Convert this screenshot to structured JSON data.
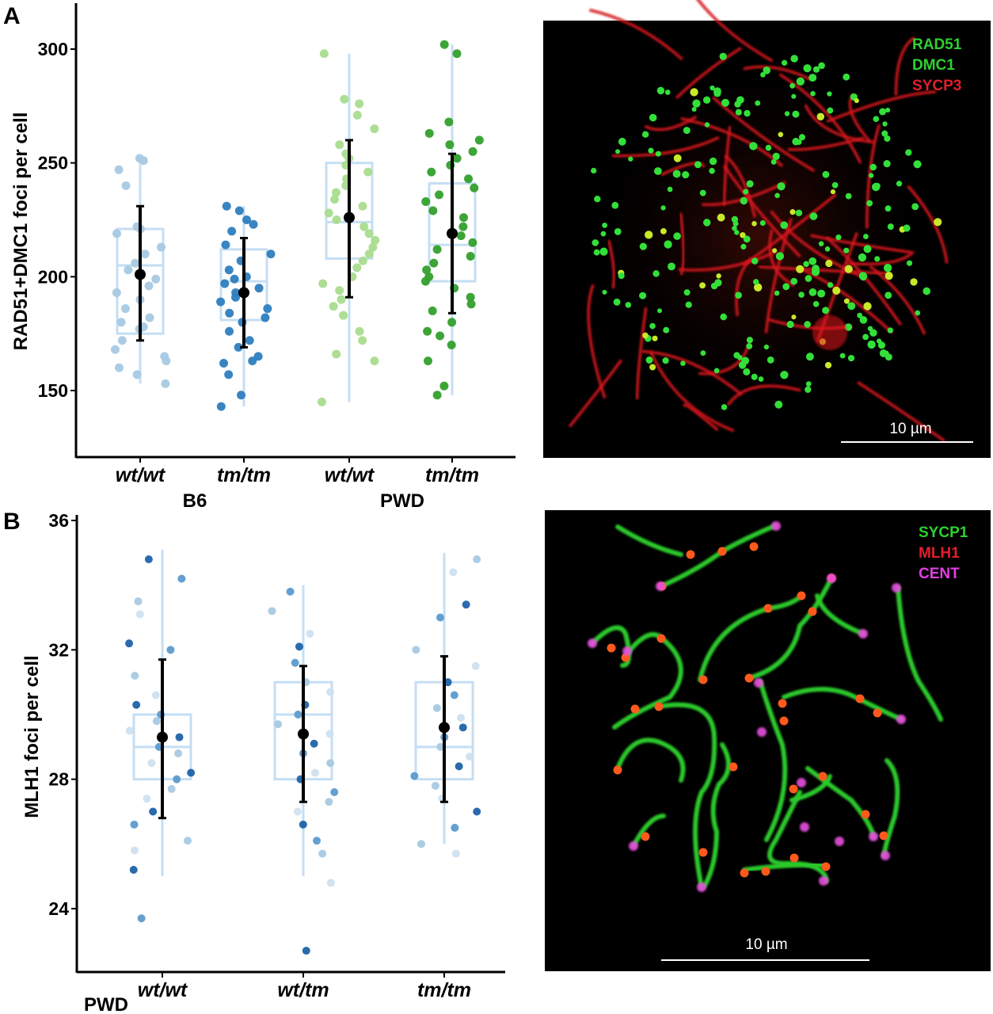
{
  "panels": {
    "a": {
      "letter": "A"
    },
    "b": {
      "letter": "B"
    }
  },
  "chart_data": [
    {
      "type": "scatter",
      "ylabel": "RAD51+DMC1 foci per cell",
      "ylim": [
        132,
        310
      ],
      "yticks": [
        150,
        200,
        250,
        300
      ],
      "categories": [
        "wt/wt",
        "tm/tm",
        "wt/wt",
        "tm/tm"
      ],
      "groups": [
        {
          "label": "B6",
          "span": [
            0,
            1
          ]
        },
        {
          "label": "PWD",
          "span": [
            2,
            3
          ]
        }
      ],
      "series": [
        {
          "category": "wt/wt",
          "color": "#a8c9e3",
          "box": {
            "q1": 175,
            "median": 205,
            "q3": 221,
            "whisker_low": 153,
            "whisker_high": 252
          },
          "mean": 201,
          "sd_low": 172,
          "sd_high": 231,
          "points": [
            252,
            251,
            247,
            240,
            222,
            221,
            219,
            213,
            210,
            206,
            203,
            199,
            196,
            193,
            190,
            186,
            182,
            180,
            178,
            177,
            172,
            168,
            165,
            163,
            160,
            157,
            153
          ]
        },
        {
          "category": "tm/tm",
          "color": "#2e7ebf",
          "box": {
            "q1": 181,
            "median": 198,
            "q3": 212,
            "whisker_low": 143,
            "whisker_high": 231
          },
          "mean": 193,
          "sd_low": 169,
          "sd_high": 217,
          "points": [
            231,
            229,
            225,
            223,
            220,
            214,
            210,
            207,
            203,
            200,
            199,
            197,
            195,
            193,
            191,
            189,
            186,
            184,
            182,
            180,
            176,
            172,
            169,
            165,
            163,
            162,
            157,
            148,
            143
          ]
        },
        {
          "category": "wt/wt",
          "color": "#a9dc8e",
          "box": {
            "q1": 208,
            "median": 224,
            "q3": 250,
            "whisker_low": 145,
            "whisker_high": 298
          },
          "mean": 226,
          "sd_low": 191,
          "sd_high": 260,
          "points": [
            298,
            278,
            276,
            271,
            265,
            258,
            254,
            252,
            249,
            246,
            243,
            240,
            237,
            234,
            231,
            228,
            225,
            222,
            219,
            216,
            213,
            210,
            207,
            204,
            200,
            197,
            194,
            190,
            187,
            183,
            176,
            172,
            166,
            163,
            145
          ]
        },
        {
          "category": "tm/tm",
          "color": "#33a02c",
          "box": {
            "q1": 198,
            "median": 214,
            "q3": 241,
            "whisker_low": 148,
            "whisker_high": 302
          },
          "mean": 219,
          "sd_low": 184,
          "sd_high": 254,
          "points": [
            302,
            298,
            268,
            263,
            260,
            258,
            255,
            252,
            249,
            246,
            243,
            239,
            236,
            233,
            229,
            226,
            222,
            218,
            215,
            212,
            209,
            206,
            203,
            200,
            198,
            195,
            191,
            188,
            185,
            180,
            176,
            174,
            170,
            163,
            152,
            148
          ]
        }
      ]
    },
    {
      "type": "scatter",
      "ylabel": "MLH1 foci per cell",
      "ylim": [
        22.5,
        36.1
      ],
      "yticks": [
        24,
        28,
        32,
        36
      ],
      "categories": [
        "wt/wt",
        "wt/tm",
        "tm/tm"
      ],
      "groups": [
        {
          "label": "PWD",
          "span": [
            0,
            0
          ]
        }
      ],
      "series": [
        {
          "category": "wt/wt",
          "box": {
            "q1": 28.0,
            "median": 29.0,
            "q3": 30.0,
            "whisker_low": 25.0,
            "whisker_high": 35.1
          },
          "mean": 29.3,
          "sd_low": 26.8,
          "sd_high": 31.7,
          "points": [
            34.8,
            34.2,
            33.5,
            33.1,
            32.2,
            32.0,
            31.2,
            30.6,
            30.3,
            30.0,
            29.8,
            29.5,
            29.3,
            29.0,
            28.8,
            28.5,
            28.2,
            28.0,
            27.7,
            27.4,
            27.0,
            26.6,
            26.1,
            25.8,
            25.2,
            23.7
          ]
        },
        {
          "category": "wt/tm",
          "box": {
            "q1": 28.0,
            "median": 30.0,
            "q3": 31.0,
            "whisker_low": 25.0,
            "whisker_high": 34.0
          },
          "mean": 29.4,
          "sd_low": 27.3,
          "sd_high": 31.5,
          "points": [
            33.8,
            33.2,
            32.5,
            32.1,
            31.6,
            31.0,
            30.7,
            30.3,
            30.0,
            29.7,
            29.4,
            29.1,
            28.8,
            28.5,
            28.2,
            28.0,
            27.6,
            27.3,
            27.0,
            26.6,
            26.1,
            25.7,
            24.8,
            22.7
          ]
        },
        {
          "category": "tm/tm",
          "box": {
            "q1": 28.0,
            "median": 29.0,
            "q3": 31.0,
            "whisker_low": 26.0,
            "whisker_high": 35.0
          },
          "mean": 29.6,
          "sd_low": 27.3,
          "sd_high": 31.8,
          "points": [
            34.8,
            34.4,
            33.4,
            33.0,
            32.0,
            31.5,
            31.0,
            30.6,
            30.2,
            29.9,
            29.6,
            29.3,
            29.0,
            28.7,
            28.4,
            28.1,
            27.8,
            27.4,
            27.0,
            26.5,
            26.0,
            25.7
          ]
        }
      ],
      "point_colors": [
        "#1f63a8",
        "#5b9bcf",
        "#a8c9e3",
        "#cfe0ef"
      ]
    }
  ],
  "micrographs": [
    {
      "legend": [
        {
          "text": "RAD51",
          "color": "#2fd12f"
        },
        {
          "text": "DMC1",
          "color": "#2fd12f"
        },
        {
          "text": "SYCP3",
          "color": "#e0202a"
        }
      ],
      "scale_label": "10 µm"
    },
    {
      "legend": [
        {
          "text": "SYCP1",
          "color": "#2fd12f"
        },
        {
          "text": "MLH1",
          "color": "#e0202a"
        },
        {
          "text": "CENT",
          "color": "#e040e0"
        }
      ],
      "scale_label": "10 µm"
    }
  ]
}
